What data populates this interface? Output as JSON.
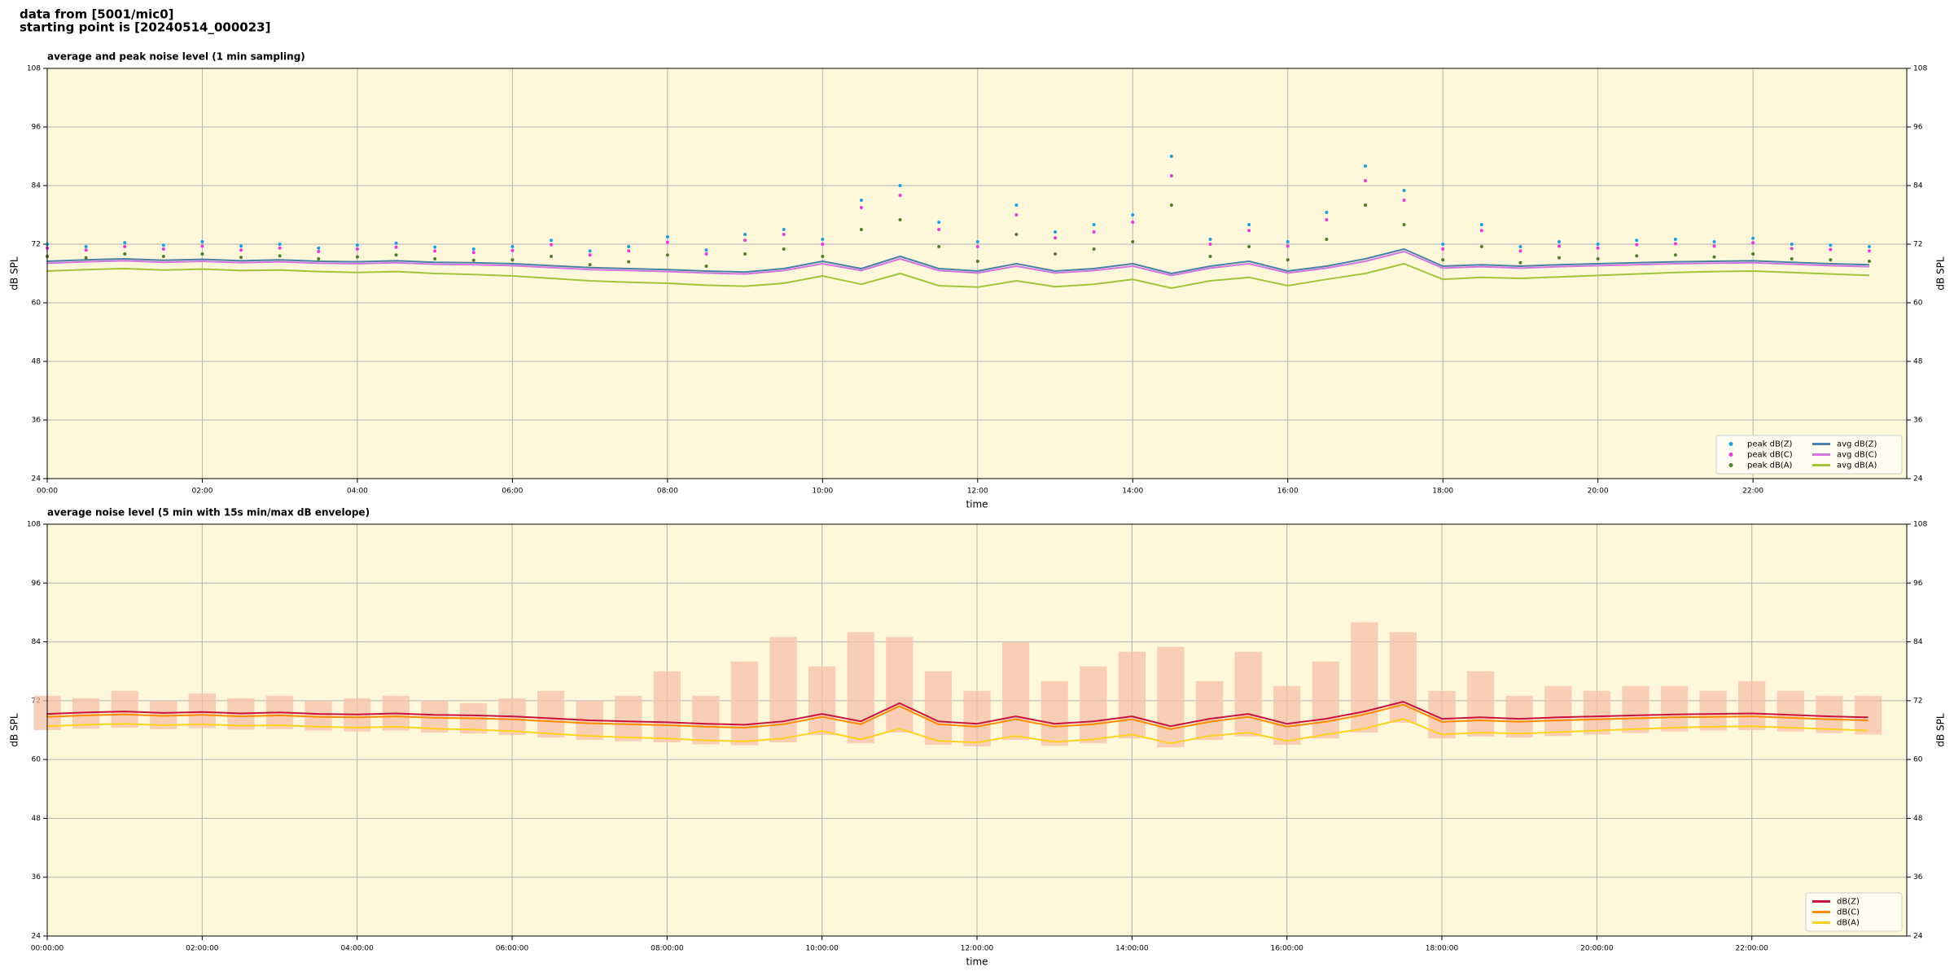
{
  "header": {
    "line1": "data from [5001/mic0]",
    "line2": "starting point is [20240514_000023]"
  },
  "chart_data": [
    {
      "type": "line",
      "title": "average and peak noise level (1 min sampling)",
      "xlabel": "time",
      "ylabel": "dB SPL",
      "grid": true,
      "legend": "lower right",
      "legend_columns": 2,
      "facecolor": "#fff7da",
      "xlim": [
        "00:00",
        "23:59"
      ],
      "xticks": [
        "00:00",
        "02:00",
        "04:00",
        "06:00",
        "08:00",
        "10:00",
        "12:00",
        "14:00",
        "16:00",
        "18:00",
        "20:00",
        "22:00"
      ],
      "ylim": [
        24,
        108
      ],
      "yticks": [
        24,
        36,
        48,
        60,
        72,
        84,
        96,
        108
      ],
      "x": [
        "00:00",
        "00:30",
        "01:00",
        "01:30",
        "02:00",
        "02:30",
        "03:00",
        "03:30",
        "04:00",
        "04:30",
        "05:00",
        "05:30",
        "06:00",
        "06:30",
        "07:00",
        "07:30",
        "08:00",
        "08:30",
        "09:00",
        "09:30",
        "10:00",
        "10:30",
        "11:00",
        "11:30",
        "12:00",
        "12:30",
        "13:00",
        "13:30",
        "14:00",
        "14:30",
        "15:00",
        "15:30",
        "16:00",
        "16:30",
        "17:00",
        "17:30",
        "18:00",
        "18:30",
        "19:00",
        "19:30",
        "20:00",
        "20:30",
        "21:00",
        "21:30",
        "22:00",
        "22:30",
        "23:00",
        "23:30"
      ],
      "series": [
        {
          "name": "peak dB(Z)",
          "type": "scatter",
          "color": "#1f9fe0",
          "values": [
            72.0,
            71.5,
            72.3,
            71.8,
            72.5,
            71.6,
            72.0,
            71.2,
            71.8,
            72.2,
            71.4,
            71.0,
            71.5,
            72.8,
            70.6,
            71.5,
            73.5,
            70.8,
            74.0,
            75.0,
            73.0,
            81.0,
            84.0,
            76.5,
            72.5,
            80.0,
            74.5,
            76.0,
            78.0,
            90.0,
            73.0,
            76.0,
            72.5,
            78.5,
            88.0,
            83.0,
            72.0,
            76.0,
            71.5,
            72.5,
            72.0,
            72.8,
            73.0,
            72.5,
            73.2,
            72.0,
            71.8,
            71.5
          ]
        },
        {
          "name": "peak dB(C)",
          "type": "scatter",
          "color": "#e83ad8",
          "values": [
            71.2,
            70.8,
            71.5,
            71.0,
            71.6,
            70.8,
            71.2,
            70.5,
            71.0,
            71.4,
            70.6,
            70.3,
            70.7,
            71.9,
            69.8,
            70.6,
            72.4,
            70.0,
            72.8,
            74.0,
            72.0,
            79.5,
            82.0,
            75.0,
            71.5,
            78.0,
            73.3,
            74.5,
            76.5,
            86.0,
            72.0,
            74.8,
            71.6,
            77.0,
            85.0,
            81.0,
            71.0,
            74.8,
            70.6,
            71.6,
            71.2,
            71.9,
            72.1,
            71.6,
            72.3,
            71.1,
            70.9,
            70.6
          ]
        },
        {
          "name": "peak dB(A)",
          "type": "scatter",
          "color": "#4f7f2a",
          "values": [
            69.5,
            69.2,
            70.0,
            69.5,
            70.0,
            69.3,
            69.6,
            69.0,
            69.4,
            69.8,
            69.0,
            68.7,
            68.8,
            69.5,
            67.8,
            68.4,
            69.8,
            67.5,
            70.0,
            71.0,
            69.5,
            75.0,
            77.0,
            71.5,
            68.5,
            74.0,
            70.0,
            71.0,
            72.5,
            80.0,
            69.5,
            71.5,
            68.8,
            73.0,
            80.0,
            76.0,
            68.8,
            71.5,
            68.2,
            69.2,
            69.0,
            69.6,
            69.8,
            69.4,
            70.0,
            69.0,
            68.8,
            68.5
          ]
        },
        {
          "name": "avg dB(Z)",
          "type": "line",
          "color": "#4a80a8",
          "values": [
            68.5,
            68.8,
            69.0,
            68.7,
            68.9,
            68.6,
            68.8,
            68.5,
            68.4,
            68.6,
            68.3,
            68.2,
            68.0,
            67.6,
            67.2,
            67.0,
            66.8,
            66.5,
            66.3,
            67.0,
            68.5,
            67.0,
            69.5,
            67.0,
            66.5,
            68.0,
            66.5,
            67.0,
            68.0,
            66.0,
            67.5,
            68.5,
            66.5,
            67.5,
            69.0,
            71.0,
            67.5,
            67.8,
            67.5,
            67.8,
            68.0,
            68.2,
            68.4,
            68.5,
            68.6,
            68.3,
            68.0,
            67.8
          ]
        },
        {
          "name": "avg dB(C)",
          "type": "line",
          "color": "#d274e2",
          "values": [
            68.1,
            68.4,
            68.6,
            68.3,
            68.5,
            68.2,
            68.4,
            68.1,
            68.0,
            68.2,
            67.9,
            67.8,
            67.6,
            67.2,
            66.8,
            66.6,
            66.4,
            66.1,
            65.9,
            66.6,
            68.0,
            66.6,
            69.0,
            66.6,
            66.1,
            67.5,
            66.1,
            66.6,
            67.5,
            65.6,
            67.1,
            68.0,
            66.1,
            67.1,
            68.5,
            70.5,
            67.1,
            67.4,
            67.1,
            67.4,
            67.6,
            67.8,
            68.0,
            68.1,
            68.2,
            67.9,
            67.6,
            67.4
          ]
        },
        {
          "name": "avg dB(A)",
          "type": "line",
          "color": "#a3c43a",
          "values": [
            66.5,
            66.8,
            67.0,
            66.7,
            66.9,
            66.6,
            66.7,
            66.4,
            66.2,
            66.4,
            66.0,
            65.8,
            65.5,
            65.0,
            64.5,
            64.2,
            64.0,
            63.6,
            63.4,
            64.0,
            65.5,
            63.8,
            66.0,
            63.5,
            63.2,
            64.5,
            63.3,
            63.8,
            64.8,
            63.0,
            64.5,
            65.2,
            63.5,
            64.8,
            66.0,
            68.0,
            64.8,
            65.2,
            65.0,
            65.3,
            65.6,
            65.9,
            66.2,
            66.4,
            66.5,
            66.2,
            65.9,
            65.6
          ]
        }
      ]
    },
    {
      "type": "line",
      "title": "average noise level (5 min with 15s min/max dB envelope)",
      "xlabel": "time",
      "ylabel": "dB SPL",
      "grid": true,
      "legend": "lower right",
      "legend_columns": 1,
      "facecolor": "#fff7da",
      "xlim": [
        "00:00:00",
        "23:59:59"
      ],
      "xticks": [
        "00:00:00",
        "02:00:00",
        "04:00:00",
        "06:00:00",
        "08:00:00",
        "10:00:00",
        "12:00:00",
        "14:00:00",
        "16:00:00",
        "18:00:00",
        "20:00:00",
        "22:00:00"
      ],
      "ylim": [
        24,
        108
      ],
      "yticks": [
        24,
        36,
        48,
        60,
        72,
        84,
        96,
        108
      ],
      "x": [
        "00:00:00",
        "00:30:00",
        "01:00:00",
        "01:30:00",
        "02:00:00",
        "02:30:00",
        "03:00:00",
        "03:30:00",
        "04:00:00",
        "04:30:00",
        "05:00:00",
        "05:30:00",
        "06:00:00",
        "06:30:00",
        "07:00:00",
        "07:30:00",
        "08:00:00",
        "08:30:00",
        "09:00:00",
        "09:30:00",
        "10:00:00",
        "10:30:00",
        "11:00:00",
        "11:30:00",
        "12:00:00",
        "12:30:00",
        "13:00:00",
        "13:30:00",
        "14:00:00",
        "14:30:00",
        "15:00:00",
        "15:30:00",
        "16:00:00",
        "16:30:00",
        "17:00:00",
        "17:30:00",
        "18:00:00",
        "18:30:00",
        "19:00:00",
        "19:30:00",
        "20:00:00",
        "20:30:00",
        "21:00:00",
        "21:30:00",
        "22:00:00",
        "22:30:00",
        "23:00:00",
        "23:30:00"
      ],
      "envelope": {
        "color": "#f6c2a8",
        "min": [
          66.0,
          66.3,
          66.5,
          66.2,
          66.4,
          66.1,
          66.2,
          65.9,
          65.7,
          65.9,
          65.5,
          65.3,
          65.0,
          64.5,
          64.0,
          63.7,
          63.5,
          63.1,
          62.9,
          63.5,
          65.0,
          63.3,
          65.5,
          63.0,
          62.7,
          64.0,
          62.8,
          63.3,
          64.3,
          62.5,
          64.0,
          64.7,
          63.0,
          64.3,
          65.5,
          67.5,
          64.3,
          64.7,
          64.5,
          64.8,
          65.1,
          65.4,
          65.7,
          65.9,
          66.0,
          65.7,
          65.4,
          65.1
        ],
        "max": [
          73,
          72.5,
          74,
          72,
          73.5,
          72.5,
          73,
          72,
          72.5,
          73,
          72,
          71.5,
          72.5,
          74,
          72,
          73,
          78,
          73,
          80,
          85,
          79,
          86,
          85,
          78,
          74,
          84,
          76,
          79,
          82,
          83,
          76,
          82,
          75,
          80,
          88,
          86,
          74,
          78,
          73,
          75,
          74,
          75,
          75,
          74,
          76,
          74,
          73,
          73
        ]
      },
      "series": [
        {
          "name": "dB(Z)",
          "type": "line",
          "color": "#c8143c",
          "values": [
            69.3,
            69.6,
            69.8,
            69.5,
            69.7,
            69.4,
            69.6,
            69.3,
            69.2,
            69.4,
            69.1,
            69.0,
            68.8,
            68.4,
            68.0,
            67.8,
            67.6,
            67.3,
            67.1,
            67.8,
            69.3,
            67.8,
            71.5,
            67.8,
            67.3,
            68.8,
            67.3,
            67.8,
            68.8,
            66.8,
            68.3,
            69.3,
            67.3,
            68.3,
            69.8,
            71.8,
            68.3,
            68.6,
            68.3,
            68.6,
            68.8,
            69.0,
            69.2,
            69.3,
            69.4,
            69.1,
            68.8,
            68.6
          ]
        },
        {
          "name": "dB(C)",
          "type": "line",
          "color": "#ff8c00",
          "values": [
            68.7,
            69.0,
            69.2,
            68.9,
            69.1,
            68.8,
            69.0,
            68.7,
            68.6,
            68.8,
            68.5,
            68.4,
            68.2,
            67.8,
            67.4,
            67.2,
            67.0,
            66.7,
            66.5,
            67.2,
            68.7,
            67.2,
            70.9,
            67.2,
            66.7,
            68.2,
            66.7,
            67.2,
            68.2,
            66.2,
            67.7,
            68.7,
            66.7,
            67.7,
            69.2,
            71.2,
            67.7,
            68.0,
            67.7,
            68.0,
            68.2,
            68.4,
            68.6,
            68.7,
            68.8,
            68.5,
            68.2,
            68.0
          ]
        },
        {
          "name": "dB(A)",
          "type": "line",
          "color": "#ffd21f",
          "values": [
            66.8,
            67.1,
            67.3,
            67.0,
            67.2,
            66.9,
            67.0,
            66.7,
            66.5,
            66.7,
            66.3,
            66.1,
            65.8,
            65.3,
            64.8,
            64.5,
            64.3,
            63.9,
            63.7,
            64.3,
            65.8,
            64.1,
            66.3,
            63.8,
            63.5,
            64.8,
            63.6,
            64.1,
            65.1,
            63.3,
            64.8,
            65.5,
            63.8,
            65.1,
            66.3,
            68.3,
            65.1,
            65.5,
            65.3,
            65.6,
            65.9,
            66.2,
            66.5,
            66.7,
            66.8,
            66.5,
            66.2,
            65.9
          ]
        }
      ]
    }
  ]
}
